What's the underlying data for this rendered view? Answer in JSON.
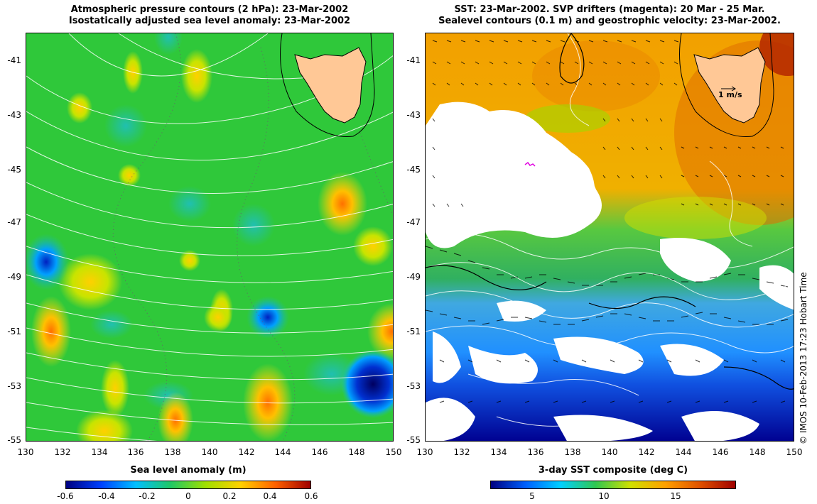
{
  "left_panel": {
    "title_line1": "Atmospheric pressure contours (2 hPa): 23-Mar-2002",
    "title_line2": "Isostatically adjusted sea level anomaly: 23-Mar-2002",
    "colorbar_title": "Sea level anomaly (m)",
    "colorbar_labels": [
      "-0.6",
      "-0.4",
      "-0.2",
      "0",
      "0.2",
      "0.4",
      "0.6"
    ]
  },
  "right_panel": {
    "title_line1": "SST: 23-Mar-2002. SVP drifters (magenta): 20 Mar - 25 Mar.",
    "title_line2": "Sealevel contours (0.1 m) and geostrophic velocity: 23-Mar-2002.",
    "colorbar_title": "3-day SST composite (deg C)",
    "colorbar_labels": [
      "5",
      "10",
      "15"
    ],
    "velocity_scale_label": "1 m/s"
  },
  "y_ticks": [
    "-41",
    "-43",
    "-45",
    "-47",
    "-49",
    "-51",
    "-53",
    "-55"
  ],
  "x_ticks": [
    "130",
    "132",
    "134",
    "136",
    "138",
    "140",
    "142",
    "144",
    "146",
    "148",
    "150"
  ],
  "credit": "© IMOS 10-Feb-2013 17:23 Hobart Time",
  "colors": {
    "ocean_mid": "#2fc83a",
    "land": "#ffc896",
    "anomaly_scale": [
      "#000080",
      "#0050ff",
      "#00c8ff",
      "#20c864",
      "#a0e000",
      "#ffd000",
      "#ff6000",
      "#a00000"
    ],
    "sst_scale": [
      "#000080",
      "#0060ff",
      "#00d0ff",
      "#30c850",
      "#d0e000",
      "#ffa000",
      "#e05000",
      "#a00000"
    ]
  }
}
